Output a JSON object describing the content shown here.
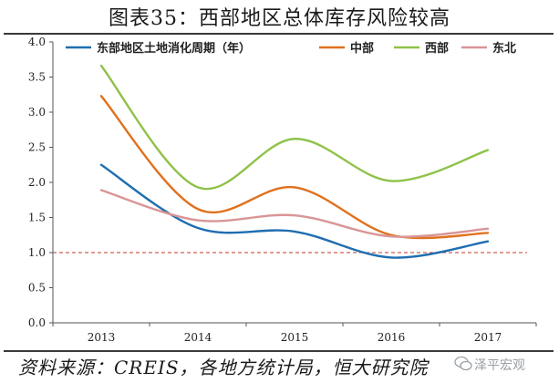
{
  "title": "图表35：西部地区总体库存风险较高",
  "source": "资料来源：CREIS，各地方统计局，恒大研究院",
  "watermark": "泽平宏观",
  "chart_data": {
    "type": "line",
    "x": [
      "2013",
      "2014",
      "2015",
      "2016",
      "2017"
    ],
    "ylim": [
      0,
      4.0
    ],
    "yticks": [
      "0.0",
      "0.5",
      "1.0",
      "1.5",
      "2.0",
      "2.5",
      "3.0",
      "3.5",
      "4.0"
    ],
    "reference_line": 1.0,
    "reference_color": "#c0392b",
    "legend_position": "top",
    "series": [
      {
        "name": "东部地区土地消化周期（年）",
        "color": "#1f6eb0",
        "values": [
          2.25,
          1.35,
          1.3,
          0.93,
          1.16
        ]
      },
      {
        "name": "中部",
        "color": "#e0711d",
        "values": [
          3.23,
          1.62,
          1.93,
          1.25,
          1.28
        ]
      },
      {
        "name": "西部",
        "color": "#8fc249",
        "values": [
          3.66,
          1.93,
          2.62,
          2.02,
          2.46
        ]
      },
      {
        "name": "东北",
        "color": "#d99596",
        "values": [
          1.89,
          1.46,
          1.53,
          1.23,
          1.34
        ]
      }
    ]
  }
}
